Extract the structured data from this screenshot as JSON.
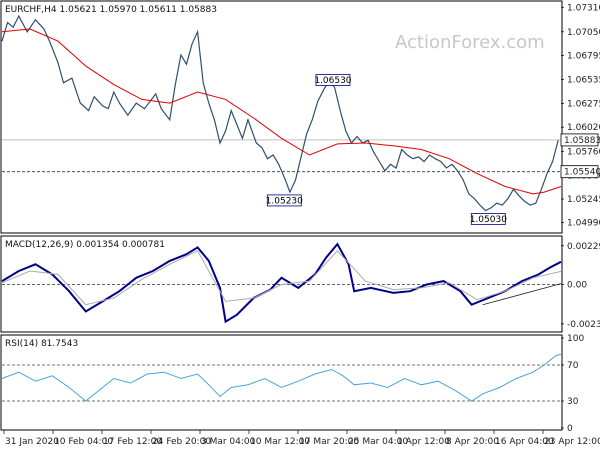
{
  "chart_data": [
    {
      "type": "line",
      "title": "EURCHF,H4  1.05621 1.05970 1.05611 1.05883",
      "watermark": "ActionForex.com",
      "ylim": [
        1.049,
        1.0735
      ],
      "y_ticks": [
        "1.07310",
        "1.07050",
        "1.06795",
        "1.06535",
        "1.06275",
        "1.06020",
        "1.05760",
        "1.05500",
        "1.05245",
        "1.04990"
      ],
      "y_tick_values": [
        1.0731,
        1.0705,
        1.06795,
        1.06535,
        1.06275,
        1.0602,
        1.0576,
        1.055,
        1.05245,
        1.0499
      ],
      "current_price": {
        "value": 1.05883,
        "label": "1.05883"
      },
      "support_line": {
        "value": 1.0554,
        "label": "1.05540"
      },
      "annotations": [
        {
          "label": "1.06530",
          "x": 0.592,
          "y": 1.0653
        },
        {
          "label": "1.05230",
          "x": 0.505,
          "y": 1.0523
        },
        {
          "label": "1.05030",
          "x": 0.87,
          "y": 1.0503
        }
      ],
      "series": [
        {
          "values": [
            [
              0,
              1.0695
            ],
            [
              0.01,
              1.0715
            ],
            [
              0.02,
              1.071
            ],
            [
              0.03,
              1.0722
            ],
            [
              0.045,
              1.0705
            ],
            [
              0.06,
              1.0718
            ],
            [
              0.075,
              1.0708
            ],
            [
              0.085,
              1.0695
            ],
            [
              0.1,
              1.0672
            ],
            [
              0.11,
              1.065
            ],
            [
              0.125,
              1.0655
            ],
            [
              0.14,
              1.0628
            ],
            [
              0.155,
              1.062
            ],
            [
              0.165,
              1.0635
            ],
            [
              0.18,
              1.0625
            ],
            [
              0.19,
              1.0622
            ],
            [
              0.2,
              1.064
            ],
            [
              0.21,
              1.0628
            ],
            [
              0.225,
              1.0615
            ],
            [
              0.24,
              1.0628
            ],
            [
              0.255,
              1.0622
            ],
            [
              0.265,
              1.063
            ],
            [
              0.275,
              1.0638
            ],
            [
              0.285,
              1.0622
            ],
            [
              0.3,
              1.061
            ],
            [
              0.31,
              1.0648
            ],
            [
              0.32,
              1.068
            ],
            [
              0.33,
              1.067
            ],
            [
              0.34,
              1.0692
            ],
            [
              0.35,
              1.0705
            ],
            [
              0.36,
              1.065
            ],
            [
              0.37,
              1.0628
            ],
            [
              0.38,
              1.061
            ],
            [
              0.39,
              1.0585
            ],
            [
              0.4,
              1.0598
            ],
            [
              0.41,
              1.062
            ],
            [
              0.42,
              1.0605
            ],
            [
              0.43,
              1.059
            ],
            [
              0.44,
              1.061
            ],
            [
              0.455,
              1.0585
            ],
            [
              0.465,
              1.058
            ],
            [
              0.475,
              1.0568
            ],
            [
              0.485,
              1.0572
            ],
            [
              0.495,
              1.0562
            ],
            [
              0.505,
              1.0548
            ],
            [
              0.515,
              1.0532
            ],
            [
              0.525,
              1.0545
            ],
            [
              0.535,
              1.057
            ],
            [
              0.545,
              1.0595
            ],
            [
              0.555,
              1.061
            ],
            [
              0.565,
              1.063
            ],
            [
              0.575,
              1.0642
            ],
            [
              0.585,
              1.0652
            ],
            [
              0.595,
              1.0645
            ],
            [
              0.605,
              1.062
            ],
            [
              0.615,
              1.0598
            ],
            [
              0.625,
              1.0585
            ],
            [
              0.635,
              1.0592
            ],
            [
              0.645,
              1.0585
            ],
            [
              0.655,
              1.0588
            ],
            [
              0.665,
              1.0575
            ],
            [
              0.675,
              1.0565
            ],
            [
              0.685,
              1.0555
            ],
            [
              0.695,
              1.0562
            ],
            [
              0.705,
              1.0558
            ],
            [
              0.715,
              1.0578
            ],
            [
              0.725,
              1.0572
            ],
            [
              0.735,
              1.0568
            ],
            [
              0.745,
              1.057
            ],
            [
              0.755,
              1.0565
            ],
            [
              0.765,
              1.0572
            ],
            [
              0.775,
              1.0568
            ],
            [
              0.785,
              1.0565
            ],
            [
              0.795,
              1.0558
            ],
            [
              0.805,
              1.0562
            ],
            [
              0.815,
              1.0555
            ],
            [
              0.825,
              1.0545
            ],
            [
              0.835,
              1.053
            ],
            [
              0.845,
              1.0525
            ],
            [
              0.855,
              1.0518
            ],
            [
              0.865,
              1.0512
            ],
            [
              0.875,
              1.0515
            ],
            [
              0.885,
              1.052
            ],
            [
              0.895,
              1.0518
            ],
            [
              0.905,
              1.0525
            ],
            [
              0.915,
              1.0535
            ],
            [
              0.925,
              1.0528
            ],
            [
              0.935,
              1.0522
            ],
            [
              0.945,
              1.0518
            ],
            [
              0.955,
              1.052
            ],
            [
              0.965,
              1.0535
            ],
            [
              0.975,
              1.0552
            ],
            [
              0.985,
              1.0565
            ],
            [
              0.995,
              1.0588
            ]
          ]
        },
        {
          "color": "#e00000",
          "values": [
            [
              0,
              1.0705
            ],
            [
              0.05,
              1.0708
            ],
            [
              0.1,
              1.0695
            ],
            [
              0.15,
              1.0668
            ],
            [
              0.2,
              1.0648
            ],
            [
              0.25,
              1.0632
            ],
            [
              0.3,
              1.0628
            ],
            [
              0.35,
              1.064
            ],
            [
              0.4,
              1.0632
            ],
            [
              0.45,
              1.0612
            ],
            [
              0.5,
              1.059
            ],
            [
              0.55,
              1.0572
            ],
            [
              0.6,
              1.0584
            ],
            [
              0.65,
              1.0585
            ],
            [
              0.7,
              1.0582
            ],
            [
              0.75,
              1.0578
            ],
            [
              0.8,
              1.0568
            ],
            [
              0.85,
              1.0552
            ],
            [
              0.9,
              1.0538
            ],
            [
              0.95,
              1.053
            ],
            [
              0.97,
              1.0532
            ],
            [
              1.0,
              1.0538
            ]
          ]
        }
      ]
    },
    {
      "type": "line",
      "title": "MACD(12,26,9) 0.001354 0.000781",
      "ylim": [
        -0.0027,
        0.0027
      ],
      "y_ticks": [
        "0.002297",
        "0.00",
        "-0.002336"
      ],
      "y_tick_values": [
        0.002297,
        0.0,
        -0.002336
      ],
      "series": [
        {
          "color": "#00008b",
          "values": [
            [
              0,
              0.0002
            ],
            [
              0.03,
              0.0008
            ],
            [
              0.06,
              0.0012
            ],
            [
              0.09,
              0.0006
            ],
            [
              0.12,
              -0.0004
            ],
            [
              0.15,
              -0.0016
            ],
            [
              0.18,
              -0.001
            ],
            [
              0.21,
              -0.0004
            ],
            [
              0.24,
              0.0004
            ],
            [
              0.27,
              0.0008
            ],
            [
              0.3,
              0.0014
            ],
            [
              0.33,
              0.0018
            ],
            [
              0.35,
              0.0022
            ],
            [
              0.37,
              0.0014
            ],
            [
              0.39,
              -0.0002
            ],
            [
              0.4,
              -0.0022
            ],
            [
              0.42,
              -0.0018
            ],
            [
              0.45,
              -0.0008
            ],
            [
              0.48,
              -0.0003
            ],
            [
              0.5,
              0.0004
            ],
            [
              0.53,
              -0.0002
            ],
            [
              0.56,
              0.0006
            ],
            [
              0.58,
              0.0016
            ],
            [
              0.6,
              0.0024
            ],
            [
              0.62,
              0.0012
            ],
            [
              0.63,
              -0.0004
            ],
            [
              0.66,
              -0.0002
            ],
            [
              0.7,
              -0.0005
            ],
            [
              0.73,
              -0.0004
            ],
            [
              0.76,
              0.0
            ],
            [
              0.79,
              0.0002
            ],
            [
              0.82,
              -0.0004
            ],
            [
              0.84,
              -0.0012
            ],
            [
              0.87,
              -0.0008
            ],
            [
              0.9,
              -0.0004
            ],
            [
              0.93,
              0.0002
            ],
            [
              0.96,
              0.0006
            ],
            [
              0.98,
              0.001
            ],
            [
              1.0,
              0.00135
            ]
          ]
        },
        {
          "color": "#aaaaaa",
          "values": [
            [
              0,
              0.0001
            ],
            [
              0.05,
              0.0008
            ],
            [
              0.1,
              0.0006
            ],
            [
              0.15,
              -0.0012
            ],
            [
              0.2,
              -0.0008
            ],
            [
              0.25,
              0.0003
            ],
            [
              0.3,
              0.0012
            ],
            [
              0.35,
              0.002
            ],
            [
              0.4,
              -0.001
            ],
            [
              0.45,
              -0.0008
            ],
            [
              0.5,
              0.0
            ],
            [
              0.55,
              0.0002
            ],
            [
              0.6,
              0.002
            ],
            [
              0.65,
              0.0002
            ],
            [
              0.7,
              -0.0003
            ],
            [
              0.75,
              -0.0002
            ],
            [
              0.8,
              0.0001
            ],
            [
              0.85,
              -0.0009
            ],
            [
              0.9,
              -0.0004
            ],
            [
              0.95,
              0.0004
            ],
            [
              1.0,
              0.00078
            ]
          ]
        }
      ]
    },
    {
      "type": "line",
      "title": "RSI(14) 81.7543",
      "ylim": [
        0,
        100
      ],
      "y_ticks": [
        "100",
        "70",
        "30",
        "0"
      ],
      "y_tick_values": [
        100,
        70,
        30,
        0
      ],
      "x_tick_labels": [
        "31 Jan 2020",
        "10 Feb 04:00",
        "17 Feb 12:00",
        "24 Feb 20:00",
        "3 Mar 04:00",
        "10 Mar 12:00",
        "17 Mar 20:00",
        "25 Mar 04:00",
        "1 Apr 12:00",
        "8 Apr 20:00",
        "16 Apr 04:00",
        "23 Apr 12:00"
      ],
      "series": [
        {
          "color": "#4aa3df",
          "values": [
            [
              0,
              55
            ],
            [
              0.03,
              62
            ],
            [
              0.06,
              52
            ],
            [
              0.09,
              58
            ],
            [
              0.12,
              45
            ],
            [
              0.15,
              30
            ],
            [
              0.17,
              40
            ],
            [
              0.2,
              55
            ],
            [
              0.23,
              50
            ],
            [
              0.26,
              60
            ],
            [
              0.29,
              62
            ],
            [
              0.32,
              55
            ],
            [
              0.35,
              60
            ],
            [
              0.37,
              48
            ],
            [
              0.39,
              35
            ],
            [
              0.41,
              45
            ],
            [
              0.44,
              48
            ],
            [
              0.47,
              55
            ],
            [
              0.5,
              45
            ],
            [
              0.53,
              52
            ],
            [
              0.56,
              60
            ],
            [
              0.59,
              65
            ],
            [
              0.61,
              58
            ],
            [
              0.63,
              48
            ],
            [
              0.66,
              50
            ],
            [
              0.69,
              45
            ],
            [
              0.72,
              55
            ],
            [
              0.75,
              48
            ],
            [
              0.78,
              52
            ],
            [
              0.81,
              42
            ],
            [
              0.84,
              30
            ],
            [
              0.86,
              38
            ],
            [
              0.89,
              45
            ],
            [
              0.92,
              55
            ],
            [
              0.95,
              62
            ],
            [
              0.97,
              70
            ],
            [
              0.99,
              80
            ],
            [
              1.0,
              82
            ]
          ]
        }
      ]
    }
  ]
}
